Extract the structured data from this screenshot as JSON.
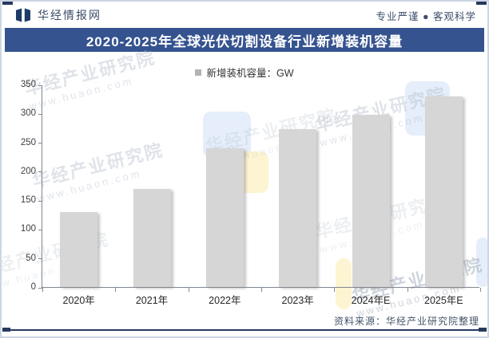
{
  "header": {
    "brand": "华经情报网",
    "slogan": "专业严谨 ● 客观科学"
  },
  "title": "2020-2025年全球光伏切割设备行业新增装机容量",
  "legend": {
    "label": "新增装机容量：GW"
  },
  "chart_data": {
    "type": "bar",
    "categories": [
      "2020年",
      "2021年",
      "2022年",
      "2023年",
      "2024年E",
      "2025年E"
    ],
    "values": [
      130,
      170,
      240,
      273,
      298,
      330
    ],
    "series_name": "新增装机容量：GW",
    "title": "2020-2025年全球光伏切割设备行业新增装机容量",
    "xlabel": "",
    "ylabel": "",
    "ylim": [
      0,
      350
    ],
    "ytick_step": 50,
    "grid": false,
    "legend_position": "top",
    "bar_color": "#d6d6d6"
  },
  "footer": {
    "source": "资料来源：华经产业研究院整理"
  },
  "watermark": {
    "line1": "华经产业研究院",
    "line2": "www.huaon.com"
  },
  "colors": {
    "title_band": "#35538f",
    "logo_navy": "#1e3a68",
    "bottom_rule": "#27395e",
    "bar_fill": "#d6d6d6",
    "legend_marker": "#b3b3b3",
    "axis": "#808792"
  }
}
